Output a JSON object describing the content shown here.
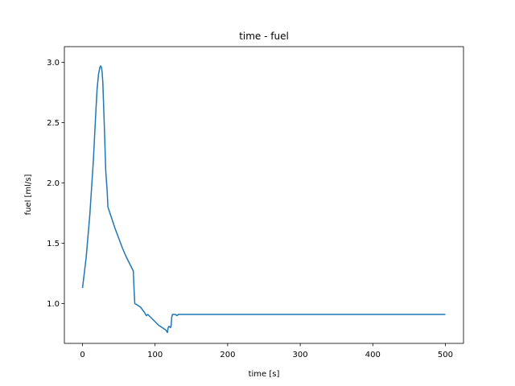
{
  "chart_data": {
    "type": "line",
    "title": "time - fuel",
    "xlabel": "time [s]",
    "ylabel": "fuel [ml/s]",
    "xlim": [
      -25,
      525
    ],
    "ylim": [
      0.67,
      3.13
    ],
    "xticks": [
      0,
      100,
      200,
      300,
      400,
      500
    ],
    "yticks": [
      1.0,
      1.5,
      2.0,
      2.5,
      3.0
    ],
    "xtick_labels": [
      "0",
      "100",
      "200",
      "300",
      "400",
      "500"
    ],
    "ytick_labels": [
      "1.0",
      "1.5",
      "2.0",
      "2.5",
      "3.0"
    ],
    "grid": false,
    "color": "#1f77b4",
    "series": [
      {
        "x": [
          0,
          5,
          10,
          15,
          18,
          20,
          22,
          24,
          25,
          26,
          27,
          28,
          30,
          32,
          34,
          35,
          40,
          45,
          50,
          55,
          60,
          65,
          70,
          71,
          72,
          75,
          80,
          85,
          87,
          88,
          90,
          95,
          100,
          105,
          110,
          115,
          117,
          118,
          119,
          120,
          121,
          122,
          123,
          124,
          125,
          126,
          128,
          130,
          132,
          135,
          140,
          150,
          200,
          300,
          400,
          500
        ],
        "y": [
          1.13,
          1.38,
          1.73,
          2.19,
          2.55,
          2.77,
          2.9,
          2.96,
          2.97,
          2.96,
          2.92,
          2.83,
          2.48,
          2.1,
          1.93,
          1.8,
          1.71,
          1.62,
          1.54,
          1.46,
          1.39,
          1.33,
          1.27,
          1.12,
          1.0,
          0.99,
          0.97,
          0.93,
          0.91,
          0.9,
          0.91,
          0.88,
          0.85,
          0.82,
          0.8,
          0.78,
          0.76,
          0.8,
          0.81,
          0.81,
          0.8,
          0.81,
          0.89,
          0.91,
          0.91,
          0.91,
          0.91,
          0.9,
          0.91,
          0.91,
          0.91,
          0.91,
          0.91,
          0.91,
          0.91,
          0.91
        ]
      }
    ]
  }
}
